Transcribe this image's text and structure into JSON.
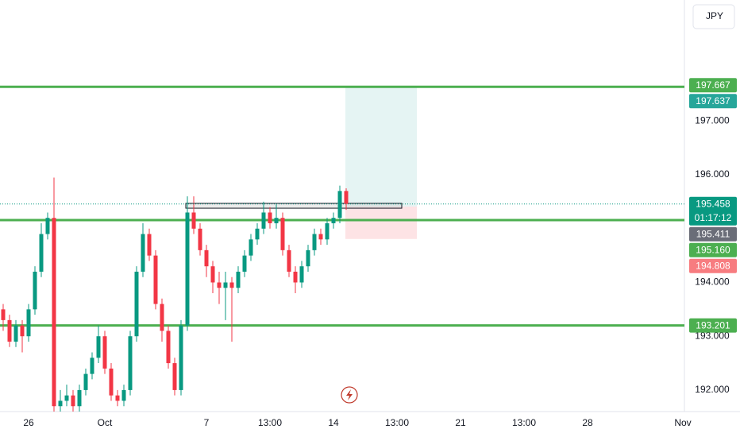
{
  "currency": "JPY",
  "chart_data": {
    "type": "candlestick",
    "categories": [
      null,
      null,
      null,
      null,
      "26",
      null,
      null,
      null,
      null,
      null,
      null,
      null,
      null,
      null,
      null,
      null,
      "Oct",
      null,
      null,
      null,
      null,
      null,
      null,
      null,
      null,
      null,
      null,
      null,
      null,
      null,
      null,
      null,
      "7",
      null,
      null,
      null,
      null,
      null,
      null,
      null,
      null,
      null,
      "13:00",
      null,
      null,
      null,
      null,
      null,
      null,
      null,
      null,
      null,
      "14",
      null,
      null,
      null,
      null,
      null,
      null,
      null,
      null,
      null,
      "13:00",
      null,
      null,
      null,
      null,
      null,
      null,
      null,
      null,
      null,
      "21",
      null,
      null,
      null,
      null,
      null,
      null,
      null,
      null,
      null,
      "13:00",
      null,
      null,
      null,
      null,
      null,
      null,
      null,
      null,
      null,
      "28",
      null,
      null,
      null,
      null,
      null,
      null,
      null,
      null,
      null,
      null,
      null,
      null,
      null,
      null,
      "Nov"
    ],
    "open": [
      193.5,
      193.3,
      192.9,
      193.2,
      193.0,
      193.5,
      194.2,
      194.9,
      195.2,
      191.7,
      191.8,
      191.9,
      191.7,
      192.0,
      192.3,
      192.6,
      193.0,
      192.4,
      191.9,
      191.8,
      192.0,
      193.0,
      194.2,
      194.9,
      194.5,
      193.6,
      193.1,
      192.5,
      192.0,
      193.2,
      195.3,
      195.0,
      194.6,
      194.3,
      194.0,
      193.9,
      194.0,
      193.9,
      194.2,
      194.5,
      194.8,
      195.0,
      195.3,
      195.1,
      195.2,
      194.6,
      194.2,
      194.0,
      194.3,
      194.6,
      194.9,
      194.8,
      195.1,
      195.2,
      195.7,
      null,
      null,
      null,
      null,
      null,
      null,
      null,
      null,
      null,
      null,
      null,
      null,
      null,
      null,
      null,
      null,
      null,
      null,
      null,
      null,
      null,
      null,
      null,
      null,
      null,
      null,
      null,
      null,
      null,
      null,
      null,
      null,
      null,
      null,
      null,
      null,
      null,
      null,
      null,
      null,
      null,
      null,
      null,
      null,
      null,
      null,
      null,
      null,
      null,
      null,
      null,
      null,
      null
    ],
    "high": [
      193.6,
      193.4,
      193.3,
      193.3,
      193.6,
      194.3,
      195.1,
      195.3,
      195.95,
      192.0,
      192.1,
      192.0,
      192.1,
      192.4,
      192.7,
      193.2,
      193.1,
      192.5,
      192.0,
      192.1,
      193.1,
      194.3,
      195.1,
      195.0,
      194.6,
      193.7,
      193.2,
      192.6,
      193.3,
      195.6,
      195.6,
      195.1,
      194.7,
      194.4,
      194.2,
      194.2,
      194.1,
      194.3,
      194.6,
      194.9,
      195.1,
      195.5,
      195.4,
      195.45,
      195.3,
      194.7,
      194.3,
      194.4,
      194.7,
      195.0,
      195.0,
      195.2,
      195.3,
      195.8,
      195.75,
      null,
      null,
      null,
      null,
      null,
      null,
      null,
      null,
      null,
      null,
      null,
      null,
      null,
      null,
      null,
      null,
      null,
      null,
      null,
      null,
      null,
      null,
      null,
      null,
      null,
      null,
      null,
      null,
      null,
      null,
      null,
      null,
      null,
      null,
      null,
      null,
      null,
      null,
      null,
      null,
      null,
      null,
      null,
      null,
      null,
      null,
      null,
      null,
      null,
      null,
      null,
      null,
      null
    ],
    "low": [
      193.1,
      192.8,
      192.8,
      192.7,
      192.9,
      193.4,
      194.1,
      194.8,
      191.6,
      191.6,
      191.7,
      191.6,
      191.6,
      191.9,
      192.2,
      192.5,
      192.3,
      191.8,
      191.7,
      191.7,
      191.9,
      192.9,
      194.1,
      194.4,
      193.5,
      192.9,
      192.4,
      191.9,
      191.9,
      193.1,
      194.9,
      194.5,
      194.1,
      193.8,
      193.6,
      193.3,
      192.9,
      193.8,
      194.1,
      194.4,
      194.7,
      194.9,
      195.0,
      195.0,
      194.5,
      194.1,
      193.8,
      193.9,
      194.2,
      194.5,
      194.7,
      194.7,
      195.0,
      195.1,
      195.35,
      null,
      null,
      null,
      null,
      null,
      null,
      null,
      null,
      null,
      null,
      null,
      null,
      null,
      null,
      null,
      null,
      null,
      null,
      null,
      null,
      null,
      null,
      null,
      null,
      null,
      null,
      null,
      null,
      null,
      null,
      null,
      null,
      null,
      null,
      null,
      null,
      null,
      null,
      null,
      null,
      null,
      null,
      null,
      null,
      null,
      null,
      null,
      null,
      null,
      null,
      null,
      null,
      null
    ],
    "close": [
      193.3,
      192.9,
      193.2,
      193.0,
      193.5,
      194.2,
      194.9,
      195.2,
      191.7,
      191.8,
      191.9,
      191.7,
      192.0,
      192.3,
      192.6,
      193.0,
      192.4,
      191.9,
      191.8,
      192.0,
      193.0,
      194.2,
      194.9,
      194.5,
      193.6,
      193.1,
      192.5,
      192.0,
      193.2,
      195.3,
      195.0,
      194.6,
      194.3,
      194.0,
      193.9,
      194.0,
      193.9,
      194.2,
      194.5,
      194.8,
      195.0,
      195.3,
      195.1,
      195.2,
      194.6,
      194.2,
      194.0,
      194.3,
      194.6,
      194.9,
      194.8,
      195.1,
      195.2,
      195.7,
      195.458,
      null,
      null,
      null,
      null,
      null,
      null,
      null,
      null,
      null,
      null,
      null,
      null,
      null,
      null,
      null,
      null,
      null,
      null,
      null,
      null,
      null,
      null,
      null,
      null,
      null,
      null,
      null,
      null,
      null,
      null,
      null,
      null,
      null,
      null,
      null,
      null,
      null,
      null,
      null,
      null,
      null,
      null,
      null,
      null,
      null,
      null,
      null,
      null,
      null,
      null,
      null,
      null,
      null
    ],
    "colors": {
      "up": "#089981",
      "down": "#f23645",
      "line": "#4caf50"
    },
    "ylim": [
      191.6,
      199.25
    ],
    "yticks": [
      {
        "value": 192,
        "label": "192.000"
      },
      {
        "value": 193,
        "label": "193.000"
      },
      {
        "value": 194,
        "label": "194.000"
      },
      {
        "value": 196,
        "label": "196.000"
      },
      {
        "value": 197,
        "label": "197.000"
      }
    ],
    "zone": [
      195.38,
      195.47
    ],
    "position": {
      "target": 197.637,
      "entry": 195.411,
      "stop": 194.808
    },
    "badges": [
      {
        "value": 197.667,
        "label": "197.667",
        "color": "#4caf50",
        "line": false
      },
      {
        "value": 197.637,
        "label": "197.637",
        "color": "#26a69a",
        "line": true
      },
      {
        "value": 195.458,
        "label": "195.458",
        "color": "#089981",
        "line": false,
        "countdown": "01:17:12"
      },
      {
        "value": 195.411,
        "label": "195.411",
        "color": "#6a6d78",
        "line": false
      },
      {
        "value": 195.16,
        "label": "195.160",
        "color": "#4caf50",
        "line": true
      },
      {
        "value": 194.808,
        "label": "194.808",
        "color": "#f77c80",
        "line": false
      },
      {
        "value": 193.201,
        "label": "193.201",
        "color": "#4caf50",
        "line": true
      }
    ]
  }
}
